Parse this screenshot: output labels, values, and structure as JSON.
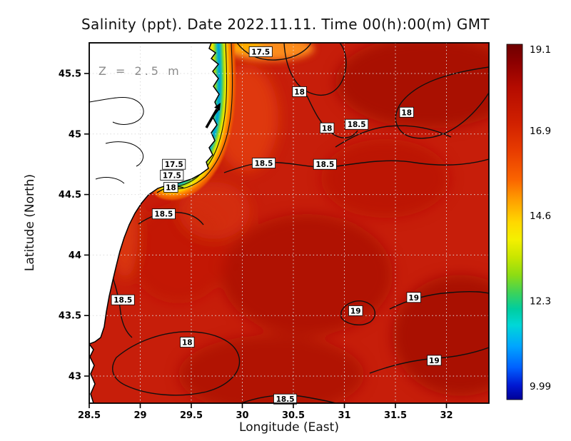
{
  "chart_data": {
    "type": "heatmap",
    "title": "Salinity (ppt). Date 2022.11.11. Time 00(h):00(m) GMT",
    "xlabel": "Longitude (East)",
    "ylabel": "Latitude (North)",
    "annotation": "Z = 2.5 m",
    "units": "ppt",
    "x_ticks": [
      "28.5",
      "29",
      "29.5",
      "30",
      "30.5",
      "31",
      "31.5",
      "32"
    ],
    "y_ticks": [
      "43",
      "43.5",
      "44",
      "44.5",
      "45",
      "45.5"
    ],
    "xlim": [
      28.5,
      32.42
    ],
    "ylim": [
      42.78,
      45.75
    ],
    "grid": true,
    "contour_levels": [
      17.5,
      18,
      18.5,
      19
    ],
    "contour_labels": [
      {
        "value": "17.5",
        "lon": 30.18,
        "lat": 45.68
      },
      {
        "value": "18",
        "lon": 30.56,
        "lat": 45.35
      },
      {
        "value": "18",
        "lon": 30.83,
        "lat": 45.05
      },
      {
        "value": "18.5",
        "lon": 31.12,
        "lat": 45.08
      },
      {
        "value": "18",
        "lon": 31.61,
        "lat": 45.18
      },
      {
        "value": "18.5",
        "lon": 30.21,
        "lat": 44.76
      },
      {
        "value": "18.5",
        "lon": 30.81,
        "lat": 44.75
      },
      {
        "value": "17.5",
        "lon": 29.33,
        "lat": 44.75
      },
      {
        "value": "17.5",
        "lon": 29.31,
        "lat": 44.66
      },
      {
        "value": "18",
        "lon": 29.3,
        "lat": 44.56
      },
      {
        "value": "18.5",
        "lon": 29.23,
        "lat": 44.34
      },
      {
        "value": "18.5",
        "lon": 28.83,
        "lat": 43.63
      },
      {
        "value": "18",
        "lon": 29.46,
        "lat": 43.28
      },
      {
        "value": "19",
        "lon": 31.11,
        "lat": 43.54
      },
      {
        "value": "19",
        "lon": 31.68,
        "lat": 43.65
      },
      {
        "value": "19",
        "lon": 31.88,
        "lat": 43.13
      },
      {
        "value": "18.5",
        "lon": 30.42,
        "lat": 42.81
      }
    ],
    "colorbar": {
      "min": 9.99,
      "max": 19.1,
      "tick_labels": [
        "19.1",
        "16.9",
        "14.6",
        "12.3",
        "9.99"
      ],
      "gradient": [
        {
          "offset": 0.0,
          "color": "#6e0000"
        },
        {
          "offset": 0.05,
          "color": "#8c0000"
        },
        {
          "offset": 0.12,
          "color": "#b40b00"
        },
        {
          "offset": 0.22,
          "color": "#d02000"
        },
        {
          "offset": 0.3,
          "color": "#e83c00"
        },
        {
          "offset": 0.38,
          "color": "#fa6400"
        },
        {
          "offset": 0.44,
          "color": "#ffa000"
        },
        {
          "offset": 0.5,
          "color": "#ffd700"
        },
        {
          "offset": 0.55,
          "color": "#f4f000"
        },
        {
          "offset": 0.6,
          "color": "#c8e600"
        },
        {
          "offset": 0.65,
          "color": "#8cdc14"
        },
        {
          "offset": 0.7,
          "color": "#3cd25a"
        },
        {
          "offset": 0.745,
          "color": "#00cda0"
        },
        {
          "offset": 0.79,
          "color": "#00d7d7"
        },
        {
          "offset": 0.85,
          "color": "#00a5ff"
        },
        {
          "offset": 0.91,
          "color": "#0060ff"
        },
        {
          "offset": 0.96,
          "color": "#0018d2"
        },
        {
          "offset": 1.0,
          "color": "#000096"
        }
      ]
    },
    "field_summary": "High salinity (18-19 ppt, dark red) over most of the basin; low-salinity coastal plume (~10-17 ppt, cyan-green-yellow-orange bands) hugging the northwestern coast near the river delta; land shown in white with black coastline, upper-left."
  }
}
